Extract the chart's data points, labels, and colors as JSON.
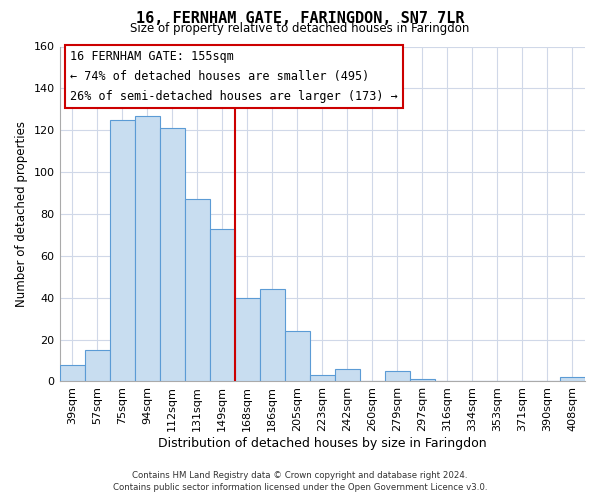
{
  "title": "16, FERNHAM GATE, FARINGDON, SN7 7LR",
  "subtitle": "Size of property relative to detached houses in Faringdon",
  "xlabel": "Distribution of detached houses by size in Faringdon",
  "ylabel": "Number of detached properties",
  "bar_labels": [
    "39sqm",
    "57sqm",
    "75sqm",
    "94sqm",
    "112sqm",
    "131sqm",
    "149sqm",
    "168sqm",
    "186sqm",
    "205sqm",
    "223sqm",
    "242sqm",
    "260sqm",
    "279sqm",
    "297sqm",
    "316sqm",
    "334sqm",
    "353sqm",
    "371sqm",
    "390sqm",
    "408sqm"
  ],
  "bar_values": [
    8,
    15,
    125,
    127,
    121,
    87,
    73,
    40,
    44,
    24,
    3,
    6,
    0,
    5,
    1,
    0,
    0,
    0,
    0,
    0,
    2
  ],
  "bar_color": "#c8ddf0",
  "bar_edge_color": "#5b9bd5",
  "vline_x_index": 7,
  "vline_color": "#cc0000",
  "ylim": [
    0,
    160
  ],
  "yticks": [
    0,
    20,
    40,
    60,
    80,
    100,
    120,
    140,
    160
  ],
  "annotation_title": "16 FERNHAM GATE: 155sqm",
  "annotation_line1": "← 74% of detached houses are smaller (495)",
  "annotation_line2": "26% of semi-detached houses are larger (173) →",
  "annotation_box_color": "#ffffff",
  "annotation_box_edge": "#cc0000",
  "footer_line1": "Contains HM Land Registry data © Crown copyright and database right 2024.",
  "footer_line2": "Contains public sector information licensed under the Open Government Licence v3.0.",
  "figure_background": "#ffffff",
  "axes_background": "#ffffff",
  "grid_color": "#d0d8e8"
}
